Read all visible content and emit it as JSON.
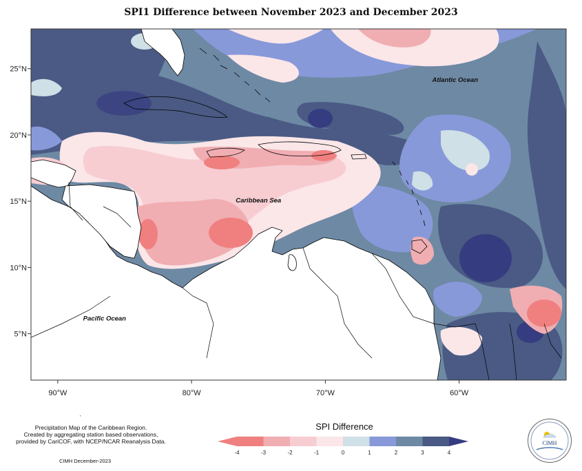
{
  "title": "SPI1 Difference between November 2023 and December 2023",
  "map": {
    "lon_range": [
      -92,
      -52
    ],
    "lat_range": [
      1.5,
      28
    ],
    "x_ticks": [
      {
        "lon": -90,
        "label": "90°W"
      },
      {
        "lon": -80,
        "label": "80°W"
      },
      {
        "lon": -70,
        "label": "70°W"
      },
      {
        "lon": -60,
        "label": "60°W"
      }
    ],
    "y_ticks": [
      {
        "lat": 25,
        "label": "25°N"
      },
      {
        "lat": 20,
        "label": "20°N"
      },
      {
        "lat": 15,
        "label": "15°N"
      },
      {
        "lat": 10,
        "label": "10°N"
      },
      {
        "lat": 5,
        "label": "5°N"
      }
    ],
    "labels": [
      {
        "text": "Atlantic Ocean",
        "lon": -60.3,
        "lat": 24.0
      },
      {
        "text": "Caribbean Sea",
        "lon": -75.0,
        "lat": 14.9
      },
      {
        "text": "Pacific Ocean",
        "lon": -86.5,
        "lat": 6.0
      }
    ]
  },
  "legend": {
    "title": "SPI Difference",
    "tick_labels": [
      "-4",
      "-3",
      "-2",
      "-1",
      "0",
      "1",
      "2",
      "3",
      "4"
    ],
    "colors": [
      "#f08080",
      "#f0aeb2",
      "#f7cdd2",
      "#fbe6e8",
      "#cfe0e6",
      "#8899d9",
      "#6e89a4",
      "#4a5a84",
      "#363c80"
    ]
  },
  "credit": {
    "lines": [
      "Precipitation Map of the Caribbean Region.",
      "Created by aggregating station based observations,",
      "provided by CariCOF, with NCEP/NCAR Reanalysis Data."
    ],
    "date": "CIMH December-2023"
  },
  "logo": {
    "text": "CIMH"
  },
  "colors": {
    "ocean_base": "#6e89a4",
    "deep_blue": "#4a5a84",
    "darkest_blue": "#363c80",
    "mid_blue": "#8899d9",
    "light_blue": "#cfe0e6",
    "pale_pink": "#fbe6e8",
    "light_pink": "#f7cdd2",
    "mid_pink": "#f0aeb2",
    "red": "#f08080",
    "land": "#ffffff"
  }
}
